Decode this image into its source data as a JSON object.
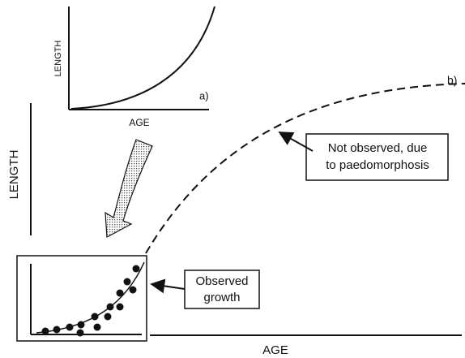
{
  "small_chart": {
    "y_label": "LENGTH",
    "x_label": "AGE",
    "tag": "a)"
  },
  "main_chart": {
    "y_label": "LENGTH",
    "x_label": "AGE",
    "tag": "b)"
  },
  "annotations": [
    {
      "lines": [
        "Not observed, due",
        "to paedomorphosis"
      ]
    },
    {
      "lines": [
        "Observed",
        "growth"
      ]
    }
  ]
}
